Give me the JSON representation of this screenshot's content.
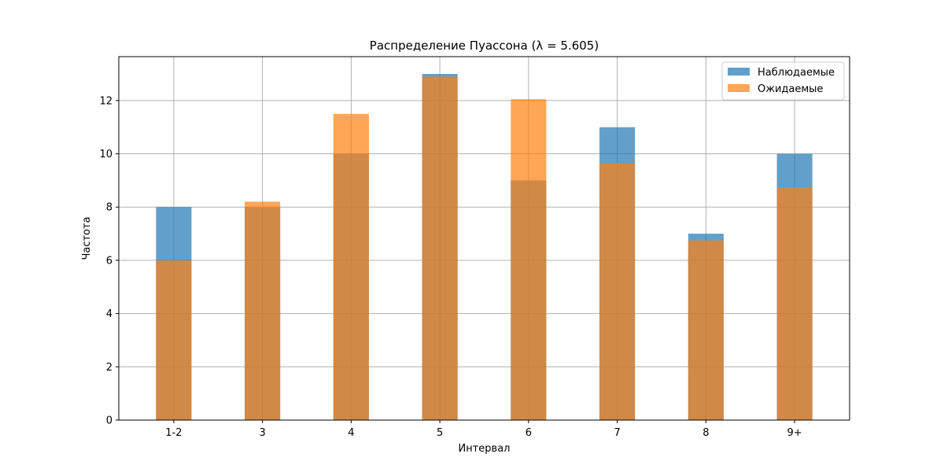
{
  "chart_data": {
    "type": "bar",
    "title": "Распределение Пуассона (λ = 5.605)",
    "xlabel": "Интервал",
    "ylabel": "Частота",
    "categories": [
      "1-2",
      "3",
      "4",
      "5",
      "6",
      "7",
      "8",
      "9+"
    ],
    "series": [
      {
        "name": "Наблюдаемые",
        "values": [
          8,
          8,
          10,
          13,
          9,
          11,
          7,
          10
        ],
        "color": "#1f77b4",
        "opacity": 0.7
      },
      {
        "name": "Ожидаемые",
        "values": [
          6.0,
          8.2,
          11.5,
          12.9,
          12.05,
          9.65,
          6.75,
          8.75
        ],
        "color": "#ff7f0e",
        "opacity": 0.7
      }
    ],
    "ylim": [
      0,
      13.65
    ],
    "yticks": [
      0,
      2,
      4,
      6,
      8,
      10,
      12
    ],
    "grid": true,
    "legend_position": "top-right"
  }
}
